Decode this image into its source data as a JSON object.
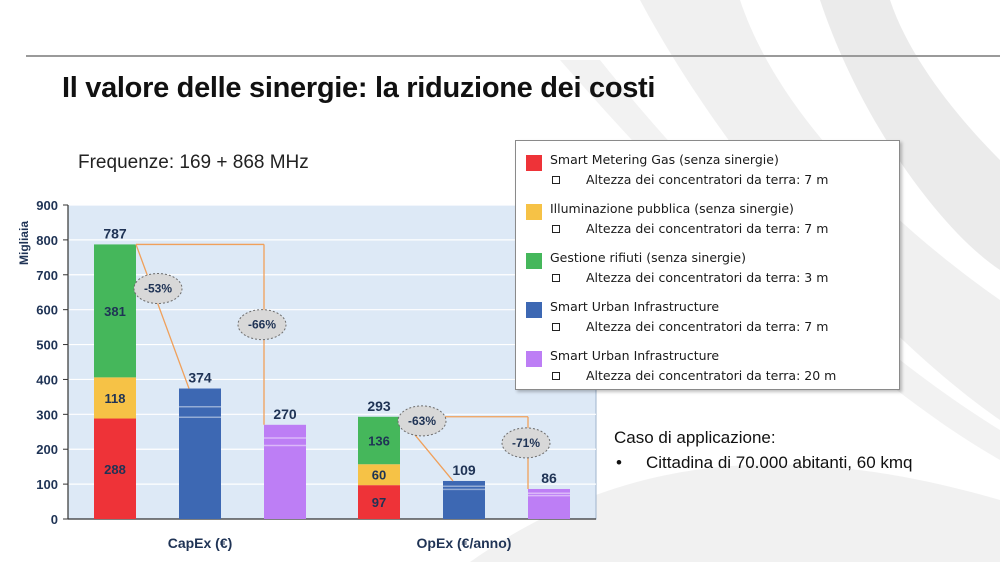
{
  "slide": {
    "title": "Il valore delle sinergie: la riduzione dei costi",
    "frequency": "Frequenze: 169 + 868 MHz",
    "case_title": "Caso di applicazione:",
    "case_bullet": "•",
    "case_text": "Cittadina di 70.000 abitanti, 60 kmq"
  },
  "colors": {
    "gas": "#ee3338",
    "lighting": "#f6c246",
    "waste": "#45b75b",
    "sui7": "#3d68b3",
    "sui20": "#bd7ef5",
    "arrow": "#f0a05a"
  },
  "chart_data": {
    "type": "bar",
    "stacked": true,
    "ylabel": "Migliaia",
    "ylim": [
      0,
      900
    ],
    "yticks": [
      0,
      100,
      200,
      300,
      400,
      500,
      600,
      700,
      800,
      900
    ],
    "grid": true,
    "legend_position": "right",
    "groups": [
      {
        "name": "CapEx (€)",
        "bars": [
          {
            "segments": [
              {
                "series": "Smart Metering Gas (senza sinergie)",
                "value": 288,
                "label": "288"
              },
              {
                "series": "Illuminazione pubblica (senza sinergie)",
                "value": 118,
                "label": "118"
              },
              {
                "series": "Gestione rifiuti (senza sinergie)",
                "value": 381,
                "label": "381"
              }
            ],
            "total_label": "787"
          },
          {
            "segments": [
              {
                "series": "Smart Urban Infrastructure (7 m)",
                "value": 374
              }
            ],
            "total_label": "374"
          },
          {
            "segments": [
              {
                "series": "Smart Urban Infrastructure (20 m)",
                "value": 270
              }
            ],
            "total_label": "270"
          }
        ],
        "reductions": [
          "-53%",
          "-66%"
        ]
      },
      {
        "name": "OpEx (€/anno)",
        "bars": [
          {
            "segments": [
              {
                "series": "Smart Metering Gas (senza sinergie)",
                "value": 97,
                "label": "97"
              },
              {
                "series": "Illuminazione pubblica (senza sinergie)",
                "value": 60,
                "label": "60"
              },
              {
                "series": "Gestione rifiuti (senza sinergie)",
                "value": 136,
                "label": "136"
              }
            ],
            "total_label": "293"
          },
          {
            "segments": [
              {
                "series": "Smart Urban Infrastructure (7 m)",
                "value": 109
              }
            ],
            "total_label": "109"
          },
          {
            "segments": [
              {
                "series": "Smart Urban Infrastructure (20 m)",
                "value": 86
              }
            ],
            "total_label": "86"
          }
        ],
        "reductions": [
          "-63%",
          "-71%"
        ]
      }
    ],
    "legend": [
      {
        "label": "Smart Metering Gas (senza sinergie)",
        "detail": "Altezza dei concentratori da terra: 7 m",
        "color": "#ee3338"
      },
      {
        "label": "Illuminazione pubblica (senza sinergie)",
        "detail": "Altezza dei concentratori da terra: 7 m",
        "color": "#f6c246"
      },
      {
        "label": "Gestione rifiuti (senza sinergie)",
        "detail": "Altezza dei concentratori da terra: 3 m",
        "color": "#45b75b"
      },
      {
        "label": "Smart Urban Infrastructure",
        "detail": "Altezza dei concentratori da terra: 7 m",
        "color": "#3d68b3"
      },
      {
        "label": "Smart Urban Infrastructure",
        "detail": "Altezza dei concentratori da terra: 20 m",
        "color": "#bd7ef5"
      }
    ]
  }
}
